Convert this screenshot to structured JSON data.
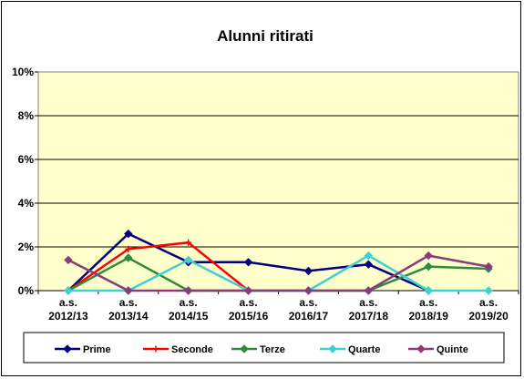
{
  "chart_data": {
    "type": "line",
    "title": "Alunni ritirati",
    "xlabel": "",
    "ylabel": "",
    "categories": [
      [
        "a.s.",
        "2012/13"
      ],
      [
        "a.s.",
        "2013/14"
      ],
      [
        "a.s.",
        "2014/15"
      ],
      [
        "a.s.",
        "2015/16"
      ],
      [
        "a.s.",
        "2016/17"
      ],
      [
        "a.s.",
        "2017/18"
      ],
      [
        "a.s.",
        "2018/19"
      ],
      [
        "a.s.",
        "2019/20"
      ]
    ],
    "ylim": [
      0,
      10
    ],
    "yticks": [
      "0%",
      "2%",
      "4%",
      "6%",
      "8%",
      "10%"
    ],
    "grid": "horizontal",
    "legend_position": "bottom",
    "plot_background": "#ffffcc",
    "series": [
      {
        "name": "Prime",
        "color": "#000080",
        "marker": "diamond",
        "values": [
          0,
          2.6,
          1.3,
          1.3,
          0.9,
          1.2,
          0,
          null
        ]
      },
      {
        "name": "Seconde",
        "color": "#ff0000",
        "marker": "plus",
        "values": [
          0,
          1.9,
          2.2,
          0,
          null,
          null,
          null,
          null
        ]
      },
      {
        "name": "Terze",
        "color": "#2e8b3e",
        "marker": "diamond",
        "values": [
          0,
          1.5,
          0,
          0,
          0,
          0,
          1.1,
          1.0
        ]
      },
      {
        "name": "Quarte",
        "color": "#40d0d0",
        "marker": "diamond",
        "values": [
          0,
          0,
          1.4,
          0,
          0,
          1.6,
          0,
          0
        ]
      },
      {
        "name": "Quinte",
        "color": "#8b3a7a",
        "marker": "diamond",
        "values": [
          1.4,
          0,
          0,
          0,
          0,
          0,
          1.6,
          1.1
        ]
      }
    ]
  }
}
